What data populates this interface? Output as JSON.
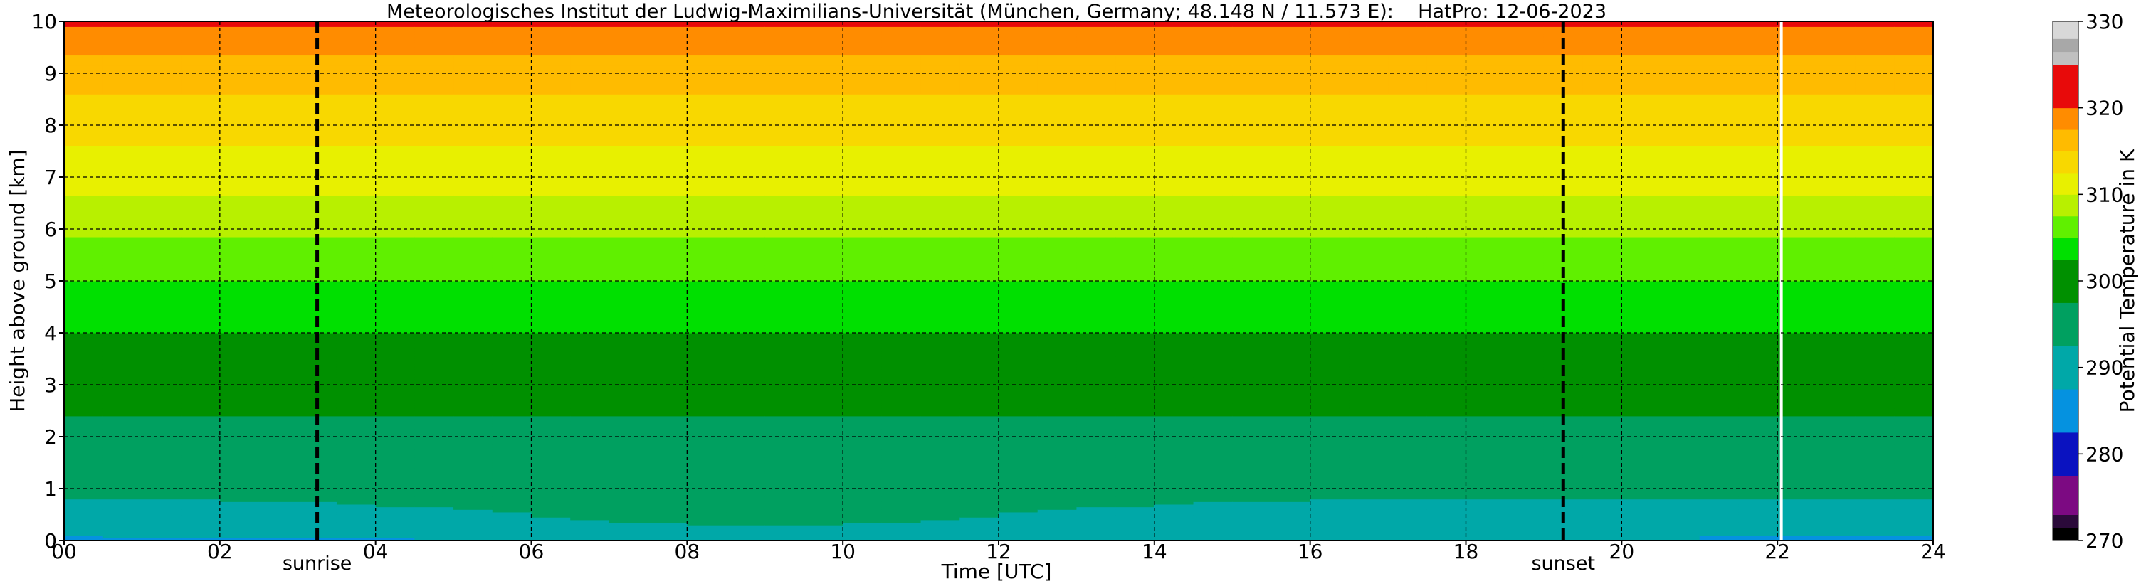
{
  "chart_data": {
    "type": "heatmap",
    "title": "Meteorologisches Institut der Ludwig-Maximilians-Universität (München, Germany; 48.148 N / 11.573 E):    HatPro: 12-06-2023",
    "xlabel": "Time [UTC]",
    "ylabel": "Height above ground [km]",
    "xlim": [
      0,
      24
    ],
    "ylim": [
      0,
      10
    ],
    "x_ticks": [
      "00",
      "02",
      "04",
      "06",
      "08",
      "10",
      "12",
      "14",
      "16",
      "18",
      "20",
      "22",
      "24"
    ],
    "y_ticks": [
      "0",
      "1",
      "2",
      "3",
      "4",
      "5",
      "6",
      "7",
      "8",
      "9",
      "10"
    ],
    "grid": true,
    "colorbar": {
      "label": "Potential Temperature in K",
      "min": 270,
      "max": 330,
      "ticks": [
        "270",
        "280",
        "290",
        "300",
        "310",
        "320",
        "330"
      ],
      "levels": [
        {
          "from": 270,
          "to": 271.5,
          "color": "#000000"
        },
        {
          "from": 271.5,
          "to": 273,
          "color": "#2b0a3a"
        },
        {
          "from": 273,
          "to": 277.5,
          "color": "#7c0a82"
        },
        {
          "from": 277.5,
          "to": 282.5,
          "color": "#0a12c0"
        },
        {
          "from": 282.5,
          "to": 287.5,
          "color": "#0592e0"
        },
        {
          "from": 287.5,
          "to": 292.5,
          "color": "#00a8a8"
        },
        {
          "from": 292.5,
          "to": 297.5,
          "color": "#00a060"
        },
        {
          "from": 297.5,
          "to": 302.5,
          "color": "#009000"
        },
        {
          "from": 302.5,
          "to": 305,
          "color": "#00e000"
        },
        {
          "from": 305,
          "to": 307.5,
          "color": "#60f000"
        },
        {
          "from": 307.5,
          "to": 310,
          "color": "#b8f000"
        },
        {
          "from": 310,
          "to": 312.5,
          "color": "#e8f000"
        },
        {
          "from": 312.5,
          "to": 315,
          "color": "#f8d800"
        },
        {
          "from": 315,
          "to": 317.5,
          "color": "#ffbb00"
        },
        {
          "from": 317.5,
          "to": 320,
          "color": "#ff8c00"
        },
        {
          "from": 320,
          "to": 325,
          "color": "#e80a0a"
        },
        {
          "from": 325,
          "to": 326.5,
          "color": "#c0c0c0"
        },
        {
          "from": 326.5,
          "to": 328,
          "color": "#a8a8a8"
        },
        {
          "from": 328,
          "to": 330,
          "color": "#d8d8d8"
        }
      ]
    },
    "profile": [
      {
        "height_km": 0.0,
        "theta_K": 288.5
      },
      {
        "height_km": 0.25,
        "theta_K": 291
      },
      {
        "height_km": 1.0,
        "theta_K": 293
      },
      {
        "height_km": 2.0,
        "theta_K": 295
      },
      {
        "height_km": 2.5,
        "theta_K": 298
      },
      {
        "height_km": 3.0,
        "theta_K": 300
      },
      {
        "height_km": 4.0,
        "theta_K": 302.5
      },
      {
        "height_km": 5.0,
        "theta_K": 305
      },
      {
        "height_km": 6.0,
        "theta_K": 308
      },
      {
        "height_km": 7.0,
        "theta_K": 311
      },
      {
        "height_km": 8.0,
        "theta_K": 313.5
      },
      {
        "height_km": 9.0,
        "theta_K": 316
      },
      {
        "height_km": 9.5,
        "theta_K": 318
      },
      {
        "height_km": 10.0,
        "theta_K": 320.5
      }
    ],
    "annotations": [
      {
        "label": "sunrise",
        "time_h": 3.25,
        "linestyle": "dashed"
      },
      {
        "label": "sunset",
        "time_h": 19.25,
        "linestyle": "dashed"
      }
    ],
    "data_gap_time_h": 22.05
  }
}
